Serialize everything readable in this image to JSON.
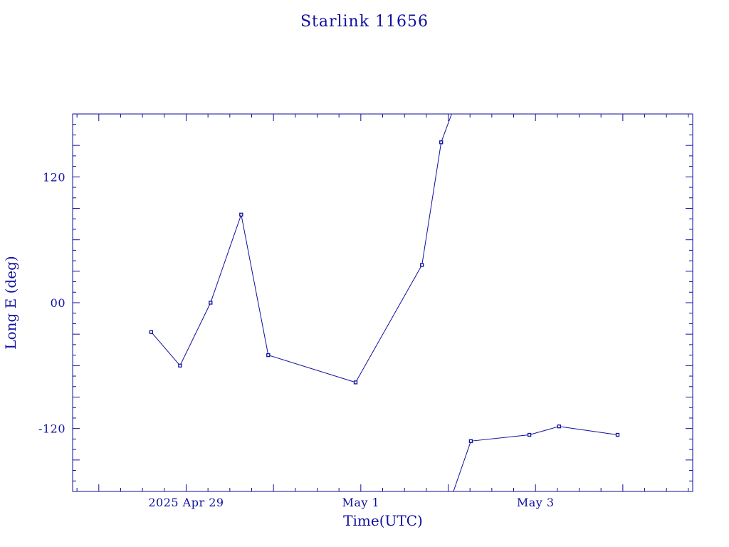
{
  "chart_data": {
    "type": "line",
    "title": "Starlink 11656",
    "xlabel": "Time(UTC)",
    "ylabel": "Long E (deg)",
    "x_tick_labels": [
      {
        "t": 1.0,
        "label": "2025 Apr 29"
      },
      {
        "t": 3.0,
        "label": "May  1"
      },
      {
        "t": 5.0,
        "label": "May  3"
      }
    ],
    "y_tick_labels": [
      {
        "v": 120,
        "label": "120"
      },
      {
        "v": 0,
        "label": "00"
      },
      {
        "v": -120,
        "label": "-120"
      }
    ],
    "xlim_days": [
      -0.3,
      6.8
    ],
    "ylim": [
      -180,
      180
    ],
    "x_tick_origin": "2025 Apr 28",
    "x_major_days": 1.0,
    "x_minor_days": 0.25,
    "y_major": 30,
    "y_minor": 10,
    "series": [
      {
        "segments": [
          [
            {
              "t": 0.6,
              "lon": -28
            },
            {
              "t": 0.93,
              "lon": -60
            },
            {
              "t": 1.28,
              "lon": 0
            },
            {
              "t": 1.63,
              "lon": 84
            },
            {
              "t": 1.94,
              "lon": -50
            },
            {
              "t": 2.94,
              "lon": -76
            },
            {
              "t": 3.7,
              "lon": 36
            },
            {
              "t": 3.92,
              "lon": 153
            },
            {
              "t": 4.04,
              "lon": 180
            }
          ],
          [
            {
              "t": 4.06,
              "lon": -180
            },
            {
              "t": 4.26,
              "lon": -132
            },
            {
              "t": 4.93,
              "lon": -126
            },
            {
              "t": 5.27,
              "lon": -118
            },
            {
              "t": 5.94,
              "lon": -126
            }
          ]
        ]
      }
    ]
  }
}
